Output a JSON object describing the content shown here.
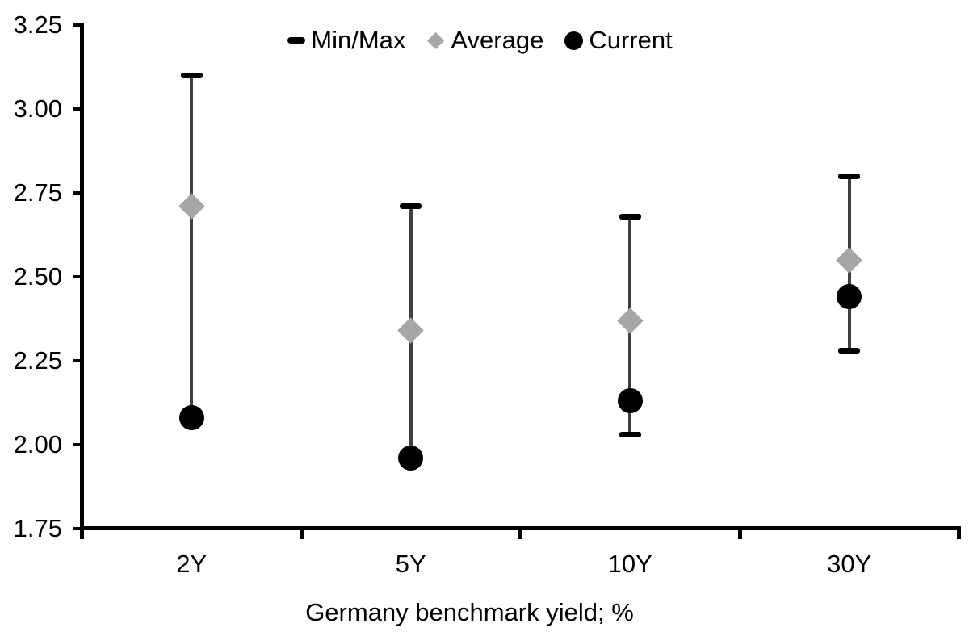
{
  "chart_data": {
    "type": "scatter",
    "title": "",
    "xlabel": "Germany benchmark yield; %",
    "ylabel": "",
    "categories": [
      "2Y",
      "5Y",
      "10Y",
      "30Y"
    ],
    "ylim": [
      1.75,
      3.25
    ],
    "ytick_step": 0.25,
    "ytick_labels": [
      "3.25",
      "3.00",
      "2.75",
      "2.50",
      "2.25",
      "2.00",
      "1.75"
    ],
    "grid": false,
    "legend_position": "top-center",
    "colors": {
      "background": "#ffffff",
      "axis": "#000000",
      "text": "#000000",
      "range_line": "#404040",
      "minmax": "#000000",
      "average": "#a6a6a6",
      "current": "#000000"
    },
    "series": [
      {
        "name": "Min/Max",
        "marker": "dash",
        "role": "range",
        "min": [
          2.08,
          1.96,
          2.03,
          2.28
        ],
        "max": [
          3.1,
          2.71,
          2.68,
          2.8
        ]
      },
      {
        "name": "Average",
        "marker": "diamond",
        "role": "point",
        "values": [
          2.71,
          2.34,
          2.37,
          2.55
        ]
      },
      {
        "name": "Current",
        "marker": "circle",
        "role": "point",
        "values": [
          2.08,
          1.96,
          2.13,
          2.44
        ]
      }
    ]
  }
}
